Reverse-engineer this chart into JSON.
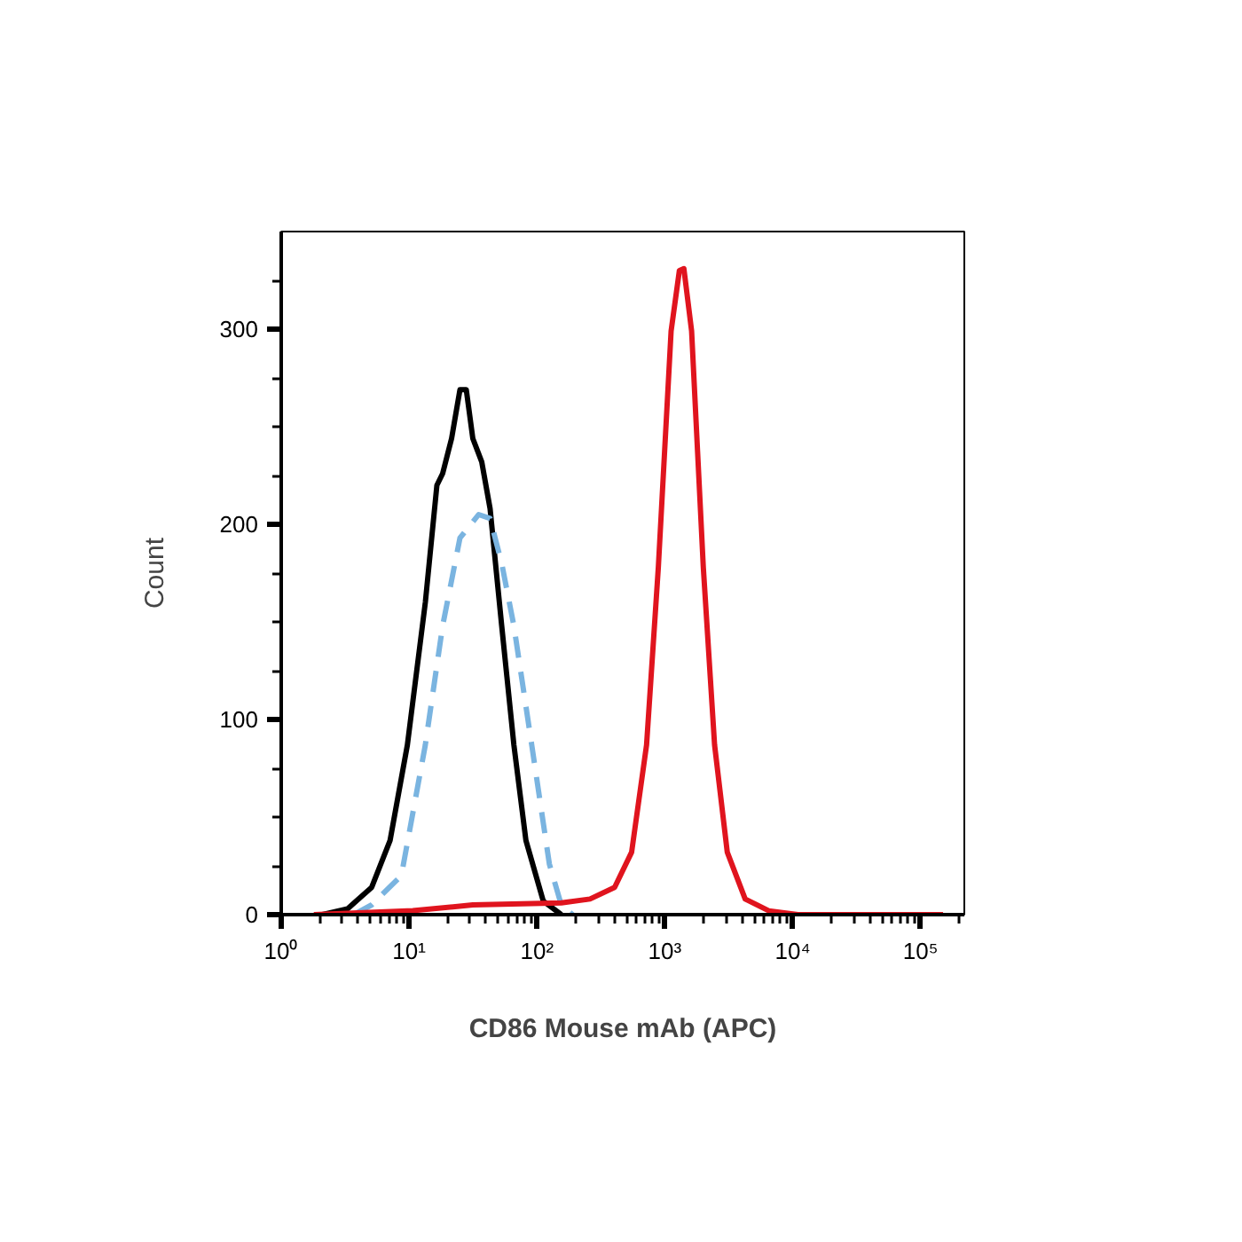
{
  "chart_data": {
    "type": "line",
    "xlabel": "CD86 Mouse mAb (APC)",
    "ylabel": "Count",
    "log": "x",
    "xlim": [
      1,
      220000
    ],
    "ylim": [
      0,
      350
    ],
    "xticks": [
      {
        "value": 1,
        "label": "10⁰"
      },
      {
        "value": 10,
        "label": "10¹"
      },
      {
        "value": 100,
        "label": "10²"
      },
      {
        "value": 1000,
        "label": "10³"
      },
      {
        "value": 10000,
        "label": "10⁴"
      },
      {
        "value": 100000,
        "label": "10⁵"
      }
    ],
    "yticks": [
      0,
      100,
      200,
      300
    ],
    "grid": false,
    "marker": "none",
    "series": [
      {
        "color": "#000000",
        "line_style": "solid",
        "x": [
          2.1,
          3.3,
          5.1,
          7.1,
          9.7,
          13.4,
          16.5,
          18.3,
          21.5,
          25,
          28,
          31.5,
          37,
          43,
          53,
          66,
          82,
          112,
          155
        ],
        "values": [
          0,
          3,
          14,
          38,
          87,
          160,
          220,
          226,
          244,
          269,
          269,
          244,
          232,
          208,
          148,
          87,
          38,
          7,
          0
        ]
      },
      {
        "color": "#7ab4e0",
        "line_style": "dashed",
        "x": [
          3.7,
          5.1,
          8.7,
          13.4,
          18.3,
          25,
          35,
          43,
          53,
          66,
          91,
          125,
          155,
          190
        ],
        "values": [
          0,
          5,
          20,
          87,
          148,
          193,
          205,
          203,
          180,
          148,
          87,
          26,
          5,
          0
        ]
      },
      {
        "color": "#e0141e",
        "line_style": "solid",
        "x": [
          1.8,
          10.7,
          31.5,
          155,
          260,
          405,
          550,
          720,
          890,
          1120,
          1300,
          1410,
          1620,
          2000,
          2450,
          3080,
          4250,
          6500,
          11000,
          150000
        ],
        "values": [
          0,
          2,
          5,
          6,
          8,
          14,
          32,
          87,
          178,
          299,
          330,
          331,
          299,
          178,
          87,
          32,
          8,
          2,
          0,
          0
        ]
      }
    ]
  }
}
